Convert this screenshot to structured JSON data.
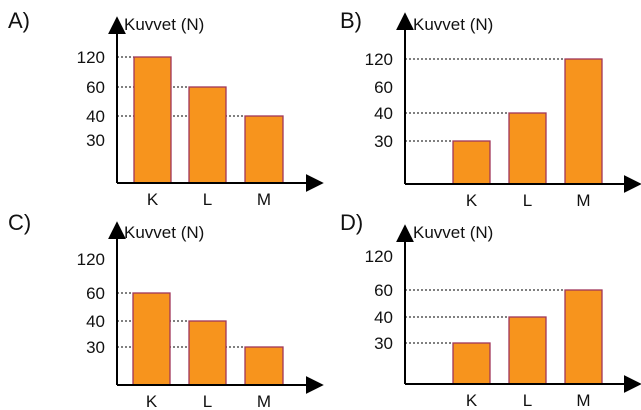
{
  "colors": {
    "bar_fill": "#F7941D",
    "bar_stroke": "#A0365A",
    "axis": "#000000",
    "guide": "#000000"
  },
  "chart_data": [
    {
      "panel": "A)",
      "type": "bar",
      "ylabel": "Kuvvet (N)",
      "categories": [
        "K",
        "L",
        "M"
      ],
      "values": [
        120,
        60,
        40
      ],
      "yticks": [
        "120",
        "60",
        "40",
        "30"
      ],
      "scale": "categorical, non-linear tick spacing",
      "guides": "dotted lines from bar tops to y-axis"
    },
    {
      "panel": "B)",
      "type": "bar",
      "ylabel": "Kuvvet (N)",
      "categories": [
        "K",
        "L",
        "M"
      ],
      "values": [
        30,
        40,
        120
      ],
      "yticks": [
        "120",
        "60",
        "40",
        "30"
      ],
      "scale": "categorical, non-linear tick spacing",
      "guides": "dotted lines from bar tops to y-axis"
    },
    {
      "panel": "C)",
      "type": "bar",
      "ylabel": "Kuvvet (N)",
      "categories": [
        "K",
        "L",
        "M"
      ],
      "values": [
        60,
        40,
        30
      ],
      "yticks": [
        "120",
        "60",
        "40",
        "30"
      ],
      "scale": "categorical, non-linear tick spacing",
      "guides": "dotted lines from bar tops to y-axis"
    },
    {
      "panel": "D)",
      "type": "bar",
      "ylabel": "Kuvvet (N)",
      "categories": [
        "K",
        "L",
        "M"
      ],
      "values": [
        30,
        40,
        60
      ],
      "yticks": [
        "120",
        "60",
        "40",
        "30"
      ],
      "scale": "categorical, non-linear tick spacing",
      "guides": "dotted lines from bar tops to y-axis"
    }
  ]
}
